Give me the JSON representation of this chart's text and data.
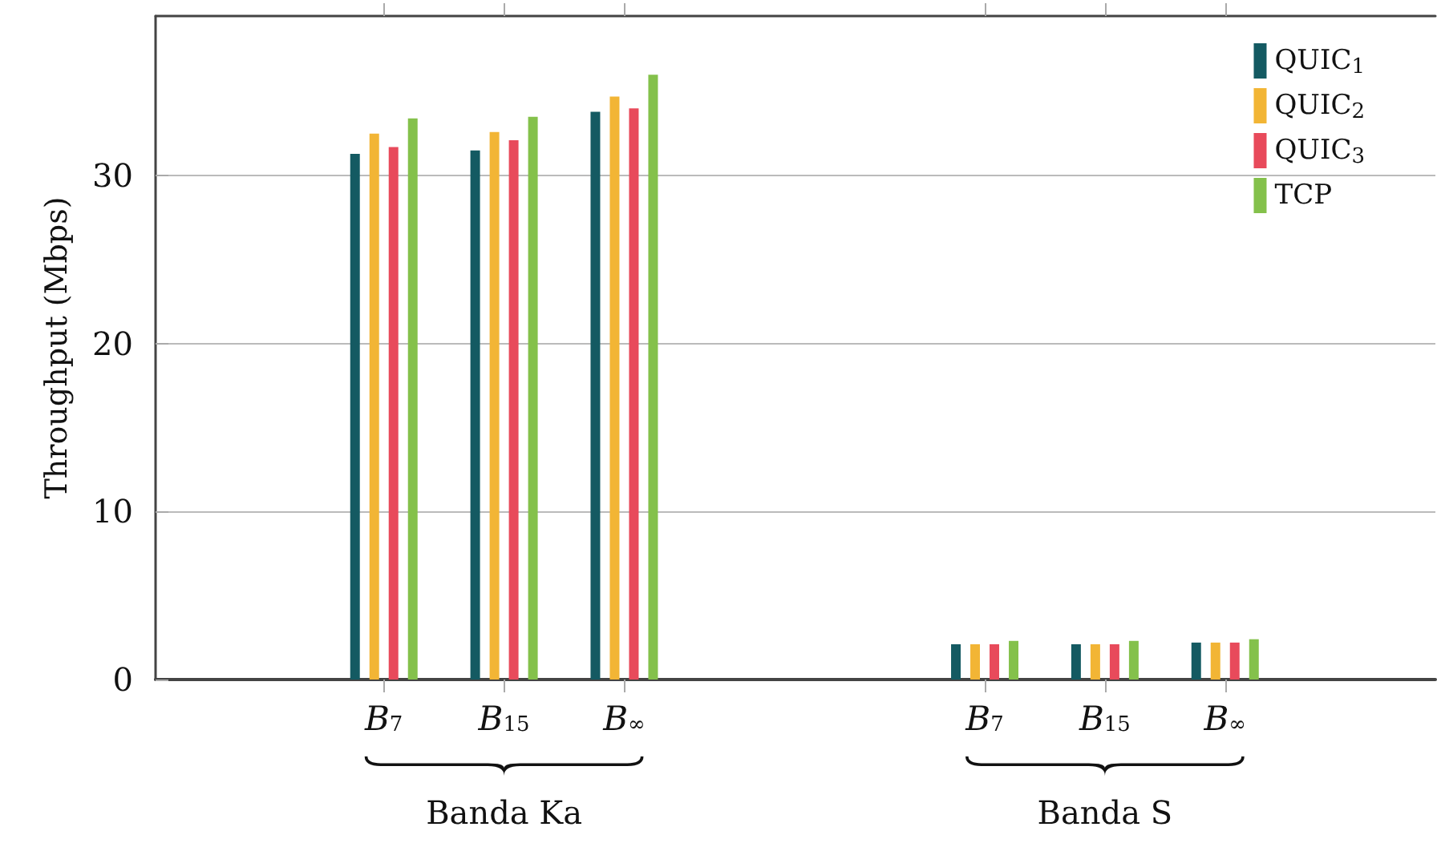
{
  "chart_data": {
    "type": "bar",
    "ylabel": "Throughput (Mbps)",
    "categories": [
      "B$_{7}$",
      "B$_{15}$",
      "B$_{∞}$",
      "B$_{7}$",
      "B$_{15}$",
      "B$_{∞}$"
    ],
    "series": [
      {
        "name": "QUIC$_{1}$",
        "color": "#145a62",
        "values": [
          31.3,
          31.5,
          33.8,
          2.1,
          2.1,
          2.2
        ]
      },
      {
        "name": "QUIC$_{2}$",
        "color": "#f2b535",
        "values": [
          32.5,
          32.6,
          34.7,
          2.1,
          2.1,
          2.2
        ]
      },
      {
        "name": "QUIC$_{3}$",
        "color": "#e84a5b",
        "values": [
          31.7,
          32.1,
          34.0,
          2.1,
          2.1,
          2.2
        ]
      },
      {
        "name": "TCP",
        "color": "#84c14b",
        "values": [
          33.4,
          33.5,
          36.0,
          2.3,
          2.3,
          2.4
        ]
      }
    ],
    "ylim": [
      0,
      39.5
    ],
    "yticks": [
      0,
      10,
      20,
      30
    ],
    "grid": "y",
    "legend": "top right",
    "annotations": [
      "Banda Ka",
      "Banda S"
    ]
  }
}
